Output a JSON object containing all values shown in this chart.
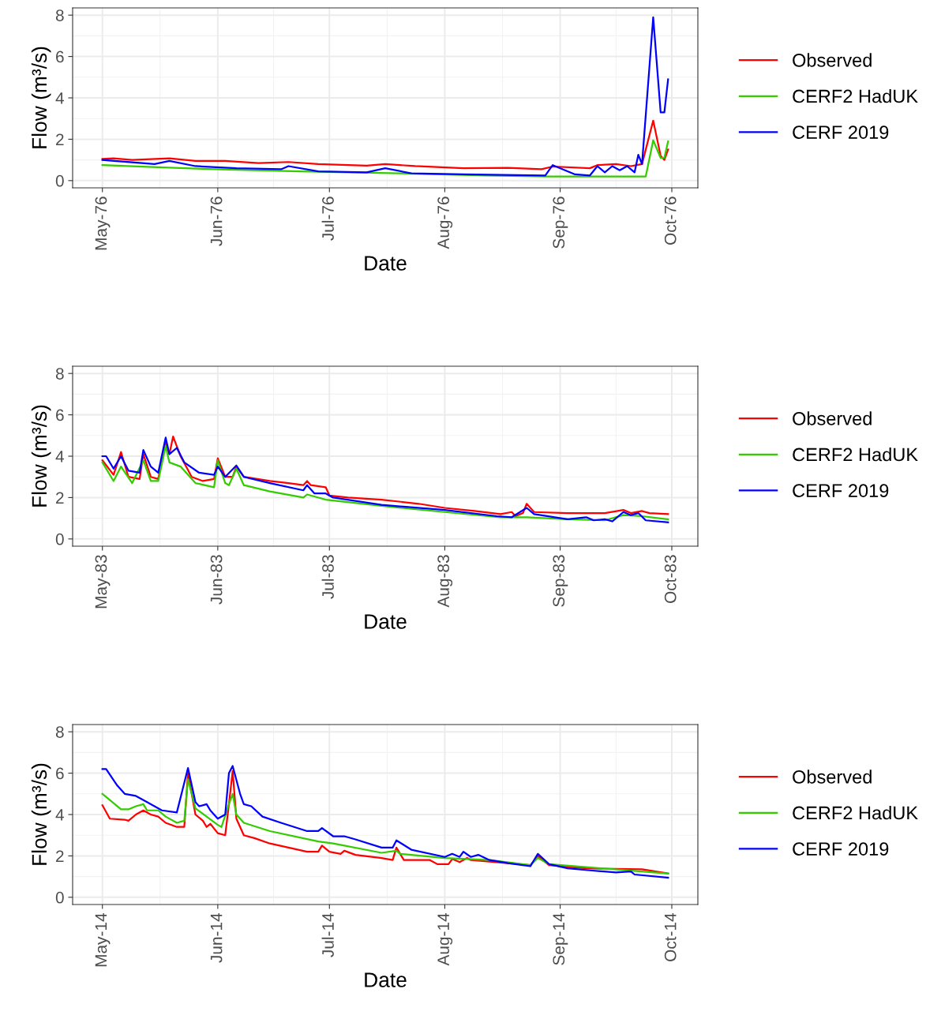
{
  "chart_data": [
    {
      "type": "line",
      "xlabel": "Date",
      "ylabel": "Flow (m³/s)",
      "legend": "right",
      "grid": true,
      "line_style": "solid",
      "marker": "none",
      "xlim": [
        "1976-04-23",
        "1976-10-08"
      ],
      "xticks": [
        {
          "value": "1976-05-01",
          "label": "May-76"
        },
        {
          "value": "1976-06-01",
          "label": "Jun-76"
        },
        {
          "value": "1976-07-01",
          "label": "Jul-76"
        },
        {
          "value": "1976-08-01",
          "label": "Aug-76"
        },
        {
          "value": "1976-09-01",
          "label": "Sep-76"
        },
        {
          "value": "1976-10-01",
          "label": "Oct-76"
        }
      ],
      "ylim": [
        -0.35,
        8.35
      ],
      "yticks": [
        0,
        2,
        4,
        6,
        8
      ],
      "series": [
        {
          "name": "Observed",
          "color": "#ff0000",
          "x": [
            "1976-05-01",
            "1976-05-04",
            "1976-05-09",
            "1976-05-19",
            "1976-05-26",
            "1976-06-03",
            "1976-06-12",
            "1976-06-20",
            "1976-06-28",
            "1976-07-11",
            "1976-07-16",
            "1976-07-24",
            "1976-08-06",
            "1976-08-18",
            "1976-08-27",
            "1976-08-30",
            "1976-09-09",
            "1976-09-11",
            "1976-09-16",
            "1976-09-20",
            "1976-09-23",
            "1976-09-26",
            "1976-09-28",
            "1976-09-29",
            "1976-09-30"
          ],
          "values": [
            1.05,
            1.08,
            1.0,
            1.08,
            0.95,
            0.95,
            0.85,
            0.9,
            0.8,
            0.72,
            0.8,
            0.7,
            0.6,
            0.62,
            0.55,
            0.68,
            0.6,
            0.75,
            0.8,
            0.7,
            0.8,
            2.9,
            1.2,
            1.0,
            1.5
          ]
        },
        {
          "name": "CERF2 HadUK",
          "color": "#33cc00",
          "x": [
            "1976-05-01",
            "1976-05-16",
            "1976-05-31",
            "1976-06-23",
            "1976-07-20",
            "1976-08-12",
            "1976-08-29",
            "1976-09-24",
            "1976-09-26",
            "1976-09-28",
            "1976-09-29",
            "1976-09-30"
          ],
          "values": [
            0.75,
            0.65,
            0.55,
            0.45,
            0.35,
            0.25,
            0.2,
            0.2,
            1.95,
            1.1,
            1.1,
            1.9
          ]
        },
        {
          "name": "CERF 2019",
          "color": "#0000ff",
          "x": [
            "1976-05-01",
            "1976-05-15",
            "1976-05-19",
            "1976-05-26",
            "1976-06-06",
            "1976-06-18",
            "1976-06-20",
            "1976-06-28",
            "1976-07-11",
            "1976-07-16",
            "1976-07-23",
            "1976-08-06",
            "1976-08-28",
            "1976-08-30",
            "1976-09-05",
            "1976-09-09",
            "1976-09-11",
            "1976-09-13",
            "1976-09-15",
            "1976-09-17",
            "1976-09-19",
            "1976-09-21",
            "1976-09-22",
            "1976-09-23",
            "1976-09-26",
            "1976-09-28",
            "1976-09-29",
            "1976-09-30"
          ],
          "values": [
            1.0,
            0.8,
            0.95,
            0.7,
            0.6,
            0.55,
            0.7,
            0.45,
            0.4,
            0.6,
            0.35,
            0.3,
            0.25,
            0.75,
            0.3,
            0.25,
            0.7,
            0.4,
            0.7,
            0.5,
            0.7,
            0.4,
            1.25,
            0.8,
            7.9,
            3.3,
            3.3,
            4.9
          ]
        }
      ]
    },
    {
      "type": "line",
      "xlabel": "Date",
      "ylabel": "Flow (m³/s)",
      "legend": "right",
      "grid": true,
      "line_style": "solid",
      "marker": "none",
      "xlim": [
        "1983-04-23",
        "1983-10-08"
      ],
      "xticks": [
        {
          "value": "1983-05-01",
          "label": "May-83"
        },
        {
          "value": "1983-06-01",
          "label": "Jun-83"
        },
        {
          "value": "1983-07-01",
          "label": "Jul-83"
        },
        {
          "value": "1983-08-01",
          "label": "Aug-83"
        },
        {
          "value": "1983-09-01",
          "label": "Sep-83"
        },
        {
          "value": "1983-10-01",
          "label": "Oct-83"
        }
      ],
      "ylim": [
        -0.35,
        8.35
      ],
      "yticks": [
        0,
        2,
        4,
        6,
        8
      ],
      "series": [
        {
          "name": "Observed",
          "color": "#ff0000",
          "x": [
            "1983-05-01",
            "1983-05-04",
            "1983-05-06",
            "1983-05-08",
            "1983-05-11",
            "1983-05-12",
            "1983-05-14",
            "1983-05-16",
            "1983-05-18",
            "1983-05-19",
            "1983-05-20",
            "1983-05-22",
            "1983-05-25",
            "1983-05-28",
            "1983-05-31",
            "1983-06-01",
            "1983-06-03",
            "1983-06-05",
            "1983-06-06",
            "1983-06-08",
            "1983-06-15",
            "1983-06-20",
            "1983-06-24",
            "1983-06-25",
            "1983-06-26",
            "1983-06-30",
            "1983-07-01",
            "1983-07-06",
            "1983-07-15",
            "1983-07-25",
            "1983-08-01",
            "1983-08-09",
            "1983-08-16",
            "1983-08-19",
            "1983-08-20",
            "1983-08-22",
            "1983-08-23",
            "1983-08-25",
            "1983-09-03",
            "1983-09-13",
            "1983-09-18",
            "1983-09-20",
            "1983-09-23",
            "1983-09-25",
            "1983-09-30"
          ],
          "values": [
            3.8,
            3.1,
            4.2,
            3.0,
            2.9,
            4.1,
            3.0,
            2.9,
            4.7,
            4.1,
            4.95,
            4.0,
            3.0,
            2.8,
            2.9,
            3.9,
            3.0,
            3.0,
            3.5,
            3.0,
            2.8,
            2.7,
            2.6,
            2.8,
            2.6,
            2.5,
            2.1,
            2.0,
            1.9,
            1.7,
            1.5,
            1.35,
            1.2,
            1.3,
            1.1,
            1.25,
            1.7,
            1.3,
            1.25,
            1.25,
            1.4,
            1.25,
            1.35,
            1.25,
            1.2
          ]
        },
        {
          "name": "CERF2 HadUK",
          "color": "#33cc00",
          "x": [
            "1983-05-01",
            "1983-05-04",
            "1983-05-06",
            "1983-05-09",
            "1983-05-12",
            "1983-05-14",
            "1983-05-16",
            "1983-05-18",
            "1983-05-19",
            "1983-05-22",
            "1983-05-26",
            "1983-05-31",
            "1983-06-01",
            "1983-06-03",
            "1983-06-04",
            "1983-06-06",
            "1983-06-08",
            "1983-06-15",
            "1983-06-24",
            "1983-06-25",
            "1983-06-30",
            "1983-07-15",
            "1983-08-01",
            "1983-08-16",
            "1983-08-23",
            "1983-09-03",
            "1983-09-13",
            "1983-09-18",
            "1983-09-23",
            "1983-09-30"
          ],
          "values": [
            3.7,
            2.8,
            3.5,
            2.7,
            3.8,
            2.8,
            2.8,
            4.5,
            3.7,
            3.5,
            2.7,
            2.5,
            3.8,
            2.7,
            2.6,
            3.4,
            2.6,
            2.3,
            2.0,
            2.15,
            1.9,
            1.6,
            1.3,
            1.05,
            1.05,
            0.95,
            0.9,
            1.15,
            1.1,
            0.95
          ]
        },
        {
          "name": "CERF 2019",
          "color": "#0000ff",
          "x": [
            "1983-05-01",
            "1983-05-02",
            "1983-05-04",
            "1983-05-06",
            "1983-05-08",
            "1983-05-11",
            "1983-05-12",
            "1983-05-14",
            "1983-05-16",
            "1983-05-18",
            "1983-05-19",
            "1983-05-21",
            "1983-05-23",
            "1983-05-27",
            "1983-05-31",
            "1983-06-01",
            "1983-06-03",
            "1983-06-06",
            "1983-06-08",
            "1983-06-15",
            "1983-06-24",
            "1983-06-25",
            "1983-06-27",
            "1983-06-30",
            "1983-07-02",
            "1983-07-15",
            "1983-08-01",
            "1983-08-15",
            "1983-08-19",
            "1983-08-23",
            "1983-08-25",
            "1983-09-03",
            "1983-09-08",
            "1983-09-10",
            "1983-09-13",
            "1983-09-15",
            "1983-09-18",
            "1983-09-20",
            "1983-09-22",
            "1983-09-24",
            "1983-09-30"
          ],
          "values": [
            4.0,
            4.0,
            3.4,
            4.0,
            3.3,
            3.2,
            4.3,
            3.5,
            3.2,
            4.9,
            4.1,
            4.4,
            3.7,
            3.2,
            3.1,
            3.5,
            3.0,
            3.55,
            3.0,
            2.7,
            2.35,
            2.6,
            2.2,
            2.2,
            2.0,
            1.65,
            1.4,
            1.1,
            1.05,
            1.5,
            1.2,
            0.95,
            1.05,
            0.9,
            0.95,
            0.85,
            1.3,
            1.15,
            1.25,
            0.9,
            0.8
          ]
        }
      ]
    },
    {
      "type": "line",
      "xlabel": "Date",
      "ylabel": "Flow (m³/s)",
      "legend": "right",
      "grid": true,
      "line_style": "solid",
      "marker": "none",
      "xlim": [
        "2014-04-23",
        "2014-10-08"
      ],
      "xticks": [
        {
          "value": "2014-05-01",
          "label": "May-14"
        },
        {
          "value": "2014-06-01",
          "label": "Jun-14"
        },
        {
          "value": "2014-07-01",
          "label": "Jul-14"
        },
        {
          "value": "2014-08-01",
          "label": "Aug-14"
        },
        {
          "value": "2014-09-01",
          "label": "Sep-14"
        },
        {
          "value": "2014-10-01",
          "label": "Oct-14"
        }
      ],
      "ylim": [
        -0.35,
        8.35
      ],
      "yticks": [
        0,
        2,
        4,
        6,
        8
      ],
      "series": [
        {
          "name": "Observed",
          "color": "#ff0000",
          "x": [
            "2014-05-01",
            "2014-05-03",
            "2014-05-07",
            "2014-05-08",
            "2014-05-10",
            "2014-05-12",
            "2014-05-14",
            "2014-05-16",
            "2014-05-18",
            "2014-05-21",
            "2014-05-23",
            "2014-05-24",
            "2014-05-26",
            "2014-05-28",
            "2014-05-29",
            "2014-05-30",
            "2014-06-01",
            "2014-06-03",
            "2014-06-04",
            "2014-06-05",
            "2014-06-06",
            "2014-06-08",
            "2014-06-11",
            "2014-06-15",
            "2014-06-20",
            "2014-06-25",
            "2014-06-28",
            "2014-06-29",
            "2014-07-01",
            "2014-07-04",
            "2014-07-05",
            "2014-07-08",
            "2014-07-15",
            "2014-07-18",
            "2014-07-19",
            "2014-07-21",
            "2014-07-28",
            "2014-07-30",
            "2014-08-02",
            "2014-08-03",
            "2014-08-05",
            "2014-08-07",
            "2014-08-08",
            "2014-08-18",
            "2014-08-24",
            "2014-08-26",
            "2014-08-29",
            "2014-09-08",
            "2014-09-23",
            "2014-09-30"
          ],
          "values": [
            4.45,
            3.8,
            3.75,
            3.7,
            4.0,
            4.2,
            4.0,
            3.9,
            3.6,
            3.4,
            3.4,
            6.0,
            4.0,
            3.7,
            3.4,
            3.55,
            3.1,
            3.0,
            4.5,
            6.1,
            3.8,
            3.0,
            2.85,
            2.6,
            2.4,
            2.2,
            2.2,
            2.5,
            2.2,
            2.1,
            2.25,
            2.05,
            1.9,
            1.8,
            2.4,
            1.8,
            1.8,
            1.6,
            1.6,
            1.85,
            1.7,
            1.9,
            1.8,
            1.65,
            1.55,
            2.0,
            1.55,
            1.4,
            1.35,
            1.15
          ]
        },
        {
          "name": "CERF2 HadUK",
          "color": "#33cc00",
          "x": [
            "2014-05-01",
            "2014-05-03",
            "2014-05-06",
            "2014-05-08",
            "2014-05-10",
            "2014-05-12",
            "2014-05-13",
            "2014-05-16",
            "2014-05-18",
            "2014-05-21",
            "2014-05-23",
            "2014-05-24",
            "2014-05-26",
            "2014-05-29",
            "2014-06-01",
            "2014-06-02",
            "2014-06-04",
            "2014-06-05",
            "2014-06-06",
            "2014-06-08",
            "2014-06-15",
            "2014-06-28",
            "2014-07-02",
            "2014-07-15",
            "2014-07-19",
            "2014-07-20",
            "2014-08-01",
            "2014-08-13",
            "2014-08-24",
            "2014-08-26",
            "2014-08-29",
            "2014-09-30"
          ],
          "values": [
            5.0,
            4.7,
            4.25,
            4.25,
            4.4,
            4.5,
            4.2,
            4.2,
            3.9,
            3.6,
            3.7,
            5.7,
            4.3,
            3.9,
            3.5,
            3.4,
            4.5,
            5.0,
            4.0,
            3.6,
            3.2,
            2.7,
            2.6,
            2.15,
            2.25,
            2.1,
            1.9,
            1.8,
            1.55,
            1.9,
            1.6,
            1.15
          ]
        },
        {
          "name": "CERF 2019",
          "color": "#0000ff",
          "x": [
            "2014-05-01",
            "2014-05-02",
            "2014-05-05",
            "2014-05-07",
            "2014-05-10",
            "2014-05-13",
            "2014-05-17",
            "2014-05-21",
            "2014-05-24",
            "2014-05-26",
            "2014-05-27",
            "2014-05-29",
            "2014-05-30",
            "2014-06-01",
            "2014-06-03",
            "2014-06-04",
            "2014-06-05",
            "2014-06-07",
            "2014-06-08",
            "2014-06-10",
            "2014-06-13",
            "2014-06-18",
            "2014-06-25",
            "2014-06-28",
            "2014-06-29",
            "2014-07-02",
            "2014-07-05",
            "2014-07-08",
            "2014-07-15",
            "2014-07-18",
            "2014-07-19",
            "2014-07-23",
            "2014-08-01",
            "2014-08-03",
            "2014-08-05",
            "2014-08-06",
            "2014-08-08",
            "2014-08-10",
            "2014-08-13",
            "2014-08-18",
            "2014-08-24",
            "2014-08-26",
            "2014-08-29",
            "2014-09-03",
            "2014-09-09",
            "2014-09-16",
            "2014-09-20",
            "2014-09-21",
            "2014-09-30"
          ],
          "values": [
            6.2,
            6.2,
            5.4,
            5.0,
            4.9,
            4.6,
            4.2,
            4.1,
            6.25,
            4.6,
            4.4,
            4.5,
            4.2,
            3.8,
            4.0,
            6.0,
            6.35,
            5.0,
            4.5,
            4.4,
            3.9,
            3.6,
            3.2,
            3.2,
            3.35,
            2.95,
            2.95,
            2.8,
            2.4,
            2.4,
            2.75,
            2.3,
            1.95,
            2.1,
            1.95,
            2.2,
            1.95,
            2.05,
            1.8,
            1.65,
            1.5,
            2.1,
            1.6,
            1.4,
            1.3,
            1.2,
            1.25,
            1.1,
            0.95
          ]
        }
      ]
    }
  ]
}
